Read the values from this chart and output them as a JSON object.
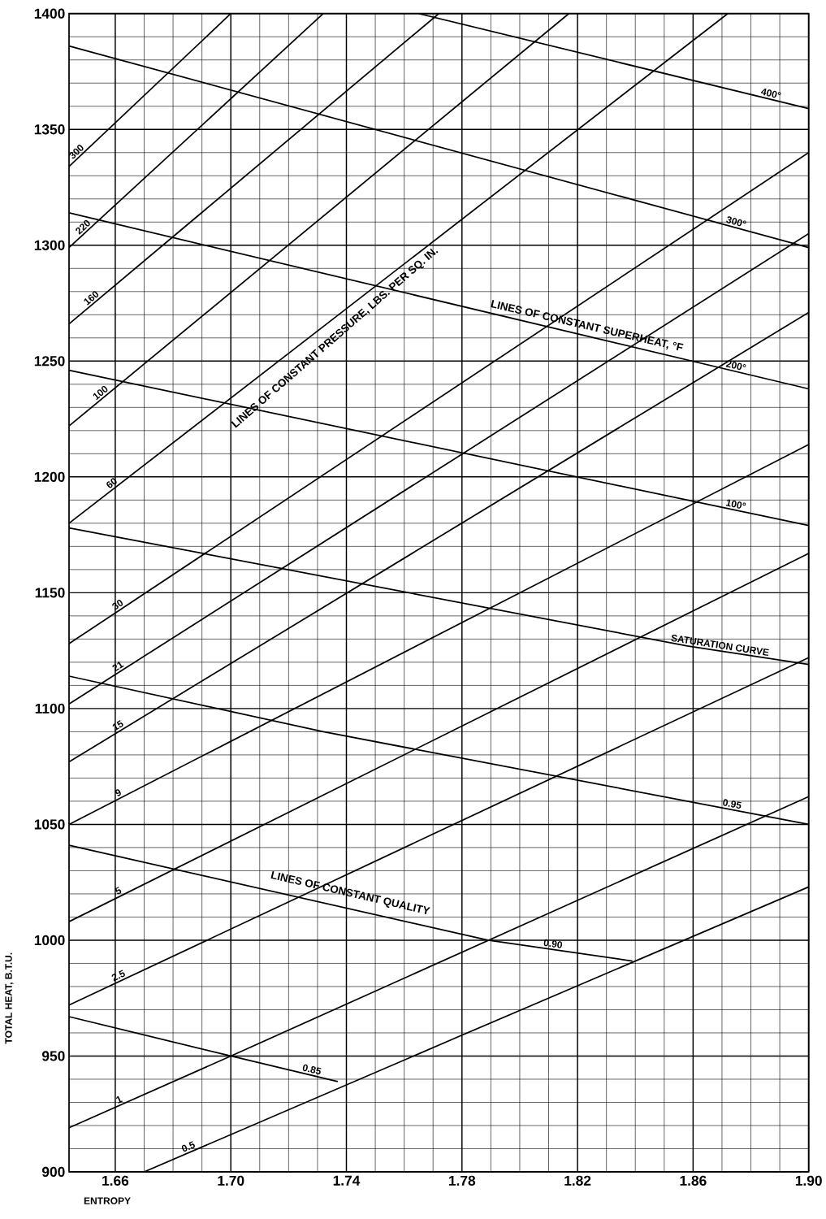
{
  "chart_data": {
    "type": "line",
    "xlabel": "ENTROPY",
    "ylabel": "TOTAL HEAT, B.T.U.",
    "xlim": [
      1.644,
      1.9
    ],
    "ylim": [
      900,
      1400
    ],
    "xticks": [
      {
        "value": 1.66,
        "label": "1.66"
      },
      {
        "value": 1.7,
        "label": "1.70"
      },
      {
        "value": 1.74,
        "label": "1.74"
      },
      {
        "value": 1.78,
        "label": "1.78"
      },
      {
        "value": 1.82,
        "label": "1.82"
      },
      {
        "value": 1.86,
        "label": "1.86"
      },
      {
        "value": 1.9,
        "label": "1.90"
      }
    ],
    "yticks": [
      900,
      950,
      1000,
      1050,
      1100,
      1150,
      1200,
      1250,
      1300,
      1350,
      1400
    ],
    "grid": true,
    "annotations": [
      "LINES OF CONSTANT PRESSURE, LBS. PER SQ. IN.",
      "LINES OF CONSTANT SUPERHEAT, °F",
      "LINES OF CONSTANT QUALITY"
    ],
    "series": [
      {
        "name": "300",
        "color": "#000000",
        "x": [
          1.644,
          1.7
        ],
        "values": [
          1334,
          1400
        ]
      },
      {
        "name": "220",
        "color": "#000000",
        "x": [
          1.644,
          1.732
        ],
        "values": [
          1299,
          1400
        ]
      },
      {
        "name": "160",
        "color": "#000000",
        "x": [
          1.644,
          1.772
        ],
        "values": [
          1266,
          1400
        ]
      },
      {
        "name": "100",
        "color": "#000000",
        "x": [
          1.644,
          1.817
        ],
        "values": [
          1222,
          1400
        ]
      },
      {
        "name": "60",
        "color": "#000000",
        "x": [
          1.644,
          1.872
        ],
        "values": [
          1180,
          1400
        ]
      },
      {
        "name": "30",
        "color": "#000000",
        "x": [
          1.644,
          1.9
        ],
        "values": [
          1128,
          1340
        ]
      },
      {
        "name": "21",
        "color": "#000000",
        "x": [
          1.644,
          1.9
        ],
        "values": [
          1102,
          1305
        ]
      },
      {
        "name": "15",
        "color": "#000000",
        "x": [
          1.644,
          1.9
        ],
        "values": [
          1077,
          1271
        ]
      },
      {
        "name": "9",
        "color": "#000000",
        "x": [
          1.644,
          1.9
        ],
        "values": [
          1050,
          1214
        ]
      },
      {
        "name": "5",
        "color": "#000000",
        "x": [
          1.644,
          1.9
        ],
        "values": [
          1008,
          1167
        ]
      },
      {
        "name": "2.5",
        "color": "#000000",
        "x": [
          1.644,
          1.9
        ],
        "values": [
          972,
          1122
        ]
      },
      {
        "name": "1",
        "color": "#000000",
        "x": [
          1.644,
          1.7,
          1.9
        ],
        "values": [
          919,
          950,
          1062
        ]
      },
      {
        "name": "0.5",
        "color": "#000000",
        "x": [
          1.67,
          1.78,
          1.9
        ],
        "values": [
          900,
          959,
          1023
        ]
      },
      {
        "name": "400°",
        "color": "#000000",
        "x": [
          1.765,
          1.9
        ],
        "values": [
          1400,
          1359
        ]
      },
      {
        "name": "300°",
        "color": "#000000",
        "x": [
          1.644,
          1.9
        ],
        "values": [
          1386,
          1299
        ]
      },
      {
        "name": "200°",
        "color": "#000000",
        "x": [
          1.644,
          1.9
        ],
        "values": [
          1314,
          1238
        ]
      },
      {
        "name": "100°",
        "color": "#000000",
        "x": [
          1.644,
          1.9
        ],
        "values": [
          1246,
          1179
        ]
      },
      {
        "name": "SATURATION CURVE",
        "color": "#000000",
        "x": [
          1.644,
          1.858,
          1.9
        ],
        "values": [
          1178,
          1127,
          1119
        ]
      },
      {
        "name": "0.95",
        "color": "#000000",
        "x": [
          1.644,
          1.732,
          1.9
        ],
        "values": [
          1114,
          1090,
          1050
        ]
      },
      {
        "name": "0.90",
        "color": "#000000",
        "x": [
          1.644,
          1.789,
          1.839
        ],
        "values": [
          1041,
          1000,
          991
        ]
      },
      {
        "name": "0.85",
        "color": "#000000",
        "x": [
          1.644,
          1.7,
          1.737
        ],
        "values": [
          967,
          950,
          939
        ]
      }
    ]
  }
}
